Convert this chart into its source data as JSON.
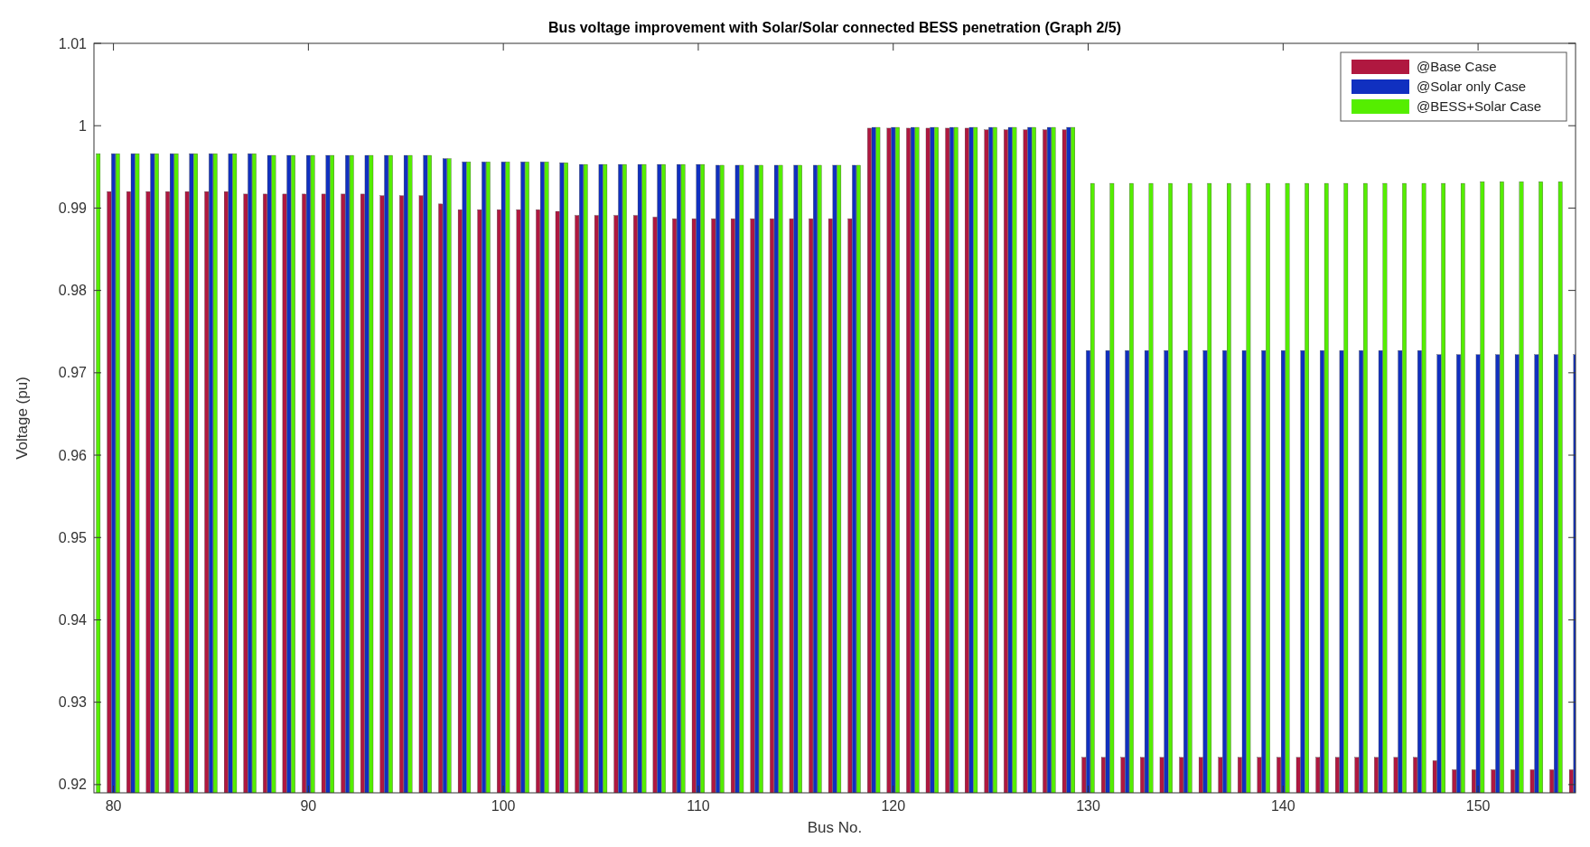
{
  "chart_data": {
    "type": "bar",
    "title": "Bus voltage improvement with Solar/Solar connected BESS penetration (Graph 2/5)",
    "xlabel": "Bus No.",
    "ylabel": "Voltage (pu)",
    "x": [
      79,
      80,
      81,
      82,
      83,
      84,
      85,
      86,
      87,
      88,
      89,
      90,
      91,
      92,
      93,
      94,
      95,
      96,
      97,
      98,
      99,
      100,
      101,
      102,
      103,
      104,
      105,
      106,
      107,
      108,
      109,
      110,
      111,
      112,
      113,
      114,
      115,
      116,
      117,
      118,
      119,
      120,
      121,
      122,
      123,
      124,
      125,
      126,
      127,
      128,
      129,
      130,
      131,
      132,
      133,
      134,
      135,
      136,
      137,
      138,
      139,
      140,
      141,
      142,
      143,
      144,
      145,
      146,
      147,
      148,
      149,
      150,
      151,
      152,
      153,
      154,
      155
    ],
    "series": [
      {
        "name": "@Base Case",
        "color": "#b01840",
        "values": [
          null,
          0.992,
          0.992,
          0.992,
          0.992,
          0.992,
          0.992,
          0.992,
          0.9917,
          0.9917,
          0.9917,
          0.9917,
          0.9917,
          0.9917,
          0.9917,
          0.9915,
          0.9915,
          0.9915,
          0.9905,
          0.9898,
          0.9898,
          0.9898,
          0.9898,
          0.9898,
          0.9896,
          0.9891,
          0.9891,
          0.9891,
          0.9891,
          0.9889,
          0.9887,
          0.9887,
          0.9887,
          0.9887,
          0.9887,
          0.9887,
          0.9887,
          0.9887,
          0.9887,
          0.9887,
          0.9997,
          0.9997,
          0.9997,
          0.9997,
          0.9997,
          0.9997,
          0.9995,
          0.9995,
          0.9995,
          0.9995,
          0.9995,
          0.9233,
          0.9233,
          0.9233,
          0.9233,
          0.9233,
          0.9233,
          0.9233,
          0.9233,
          0.9233,
          0.9233,
          0.9233,
          0.9233,
          0.9233,
          0.9233,
          0.9233,
          0.9233,
          0.9233,
          0.9233,
          0.9229,
          0.9218,
          0.9218,
          0.9218,
          0.9218,
          0.9218,
          0.9218,
          0.9218
        ]
      },
      {
        "name": "@Solar only Case",
        "color": "#1030c0",
        "values": [
          null,
          0.9966,
          0.9966,
          0.9966,
          0.9966,
          0.9966,
          0.9966,
          0.9966,
          0.9966,
          0.9964,
          0.9964,
          0.9964,
          0.9964,
          0.9964,
          0.9964,
          0.9964,
          0.9964,
          0.9964,
          0.996,
          0.9956,
          0.9956,
          0.9956,
          0.9956,
          0.9956,
          0.9955,
          0.9953,
          0.9953,
          0.9953,
          0.9953,
          0.9953,
          0.9953,
          0.9953,
          0.9952,
          0.9952,
          0.9952,
          0.9952,
          0.9952,
          0.9952,
          0.9952,
          0.9952,
          0.9998,
          0.9998,
          0.9998,
          0.9998,
          0.9998,
          0.9998,
          0.9998,
          0.9998,
          0.9998,
          0.9998,
          0.9998,
          0.9727,
          0.9727,
          0.9727,
          0.9727,
          0.9727,
          0.9727,
          0.9727,
          0.9727,
          0.9727,
          0.9727,
          0.9727,
          0.9727,
          0.9727,
          0.9727,
          0.9727,
          0.9727,
          0.9727,
          0.9727,
          0.9722,
          0.9722,
          0.9722,
          0.9722,
          0.9722,
          0.9722,
          0.9722,
          0.9722
        ]
      },
      {
        "name": "@BESS+Solar Case",
        "color": "#55ee00",
        "values": [
          0.9966,
          0.9966,
          0.9966,
          0.9966,
          0.9966,
          0.9966,
          0.9966,
          0.9966,
          0.9966,
          0.9964,
          0.9964,
          0.9964,
          0.9964,
          0.9964,
          0.9964,
          0.9964,
          0.9964,
          0.9964,
          0.996,
          0.9956,
          0.9956,
          0.9956,
          0.9956,
          0.9956,
          0.9955,
          0.9953,
          0.9953,
          0.9953,
          0.9953,
          0.9953,
          0.9953,
          0.9953,
          0.9952,
          0.9952,
          0.9952,
          0.9952,
          0.9952,
          0.9952,
          0.9952,
          0.9952,
          0.9998,
          0.9998,
          0.9998,
          0.9998,
          0.9998,
          0.9998,
          0.9998,
          0.9998,
          0.9998,
          0.9998,
          0.9998,
          0.993,
          0.993,
          0.993,
          0.993,
          0.993,
          0.993,
          0.993,
          0.993,
          0.993,
          0.993,
          0.993,
          0.993,
          0.993,
          0.993,
          0.993,
          0.993,
          0.993,
          0.993,
          0.993,
          0.993,
          0.9932,
          0.9932,
          0.9932,
          0.9932,
          0.9932,
          null
        ]
      }
    ],
    "xlim": [
      79,
      155
    ],
    "xticks": [
      80,
      90,
      100,
      110,
      120,
      130,
      140,
      150
    ],
    "ylim": [
      0.919,
      1.01
    ],
    "yticks": [
      0.92,
      0.93,
      0.94,
      0.95,
      0.96,
      0.97,
      0.98,
      0.99,
      1,
      1.01
    ],
    "legend": "top right"
  }
}
